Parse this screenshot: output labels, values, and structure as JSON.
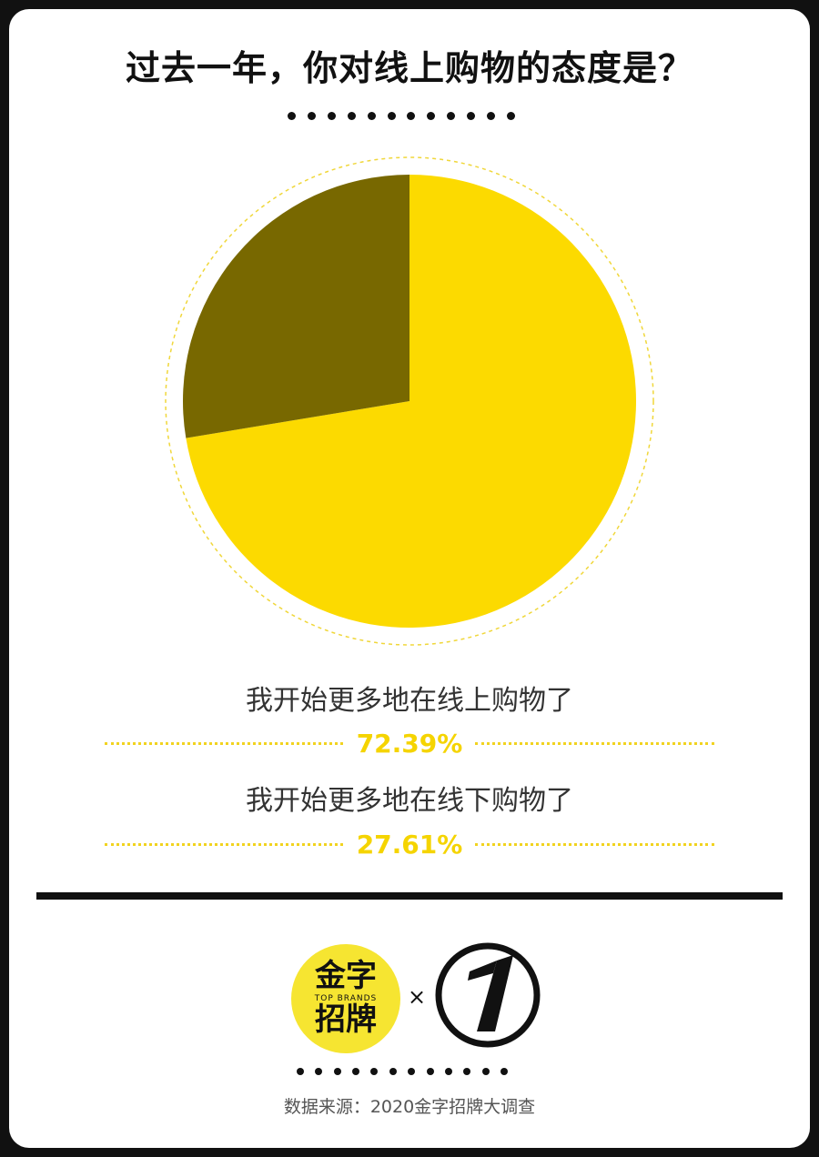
{
  "title": "过去一年，你对线上购物的态度是？",
  "chart_data": {
    "type": "pie",
    "slices": [
      {
        "label": "我开始更多地在线上购物了",
        "value": 72.39,
        "display": "72.39%",
        "color": "#fcda00"
      },
      {
        "label": "我开始更多地在线下购物了",
        "value": 27.61,
        "display": "27.61%",
        "color": "#786800"
      }
    ],
    "start": "12 o'clock",
    "direction": "clockwise"
  },
  "logos": {
    "brand_cn_line1": "金字",
    "brand_en": "TOP BRANDS",
    "brand_cn_line2": "招牌",
    "times": "×"
  },
  "source": "数据来源：2020金字招牌大调查",
  "colors": {
    "accent_yellow": "#fcda00",
    "dark_olive": "#786800",
    "dot_black": "#111111"
  }
}
